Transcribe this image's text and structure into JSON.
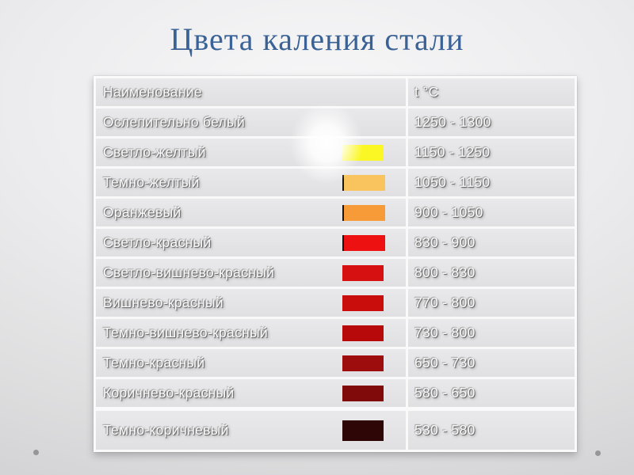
{
  "slide": {
    "title": "Цвета каления стали",
    "title_color": "#3A6296"
  },
  "table": {
    "header": {
      "name": "Наименование",
      "temp": "t °C"
    },
    "rows": [
      {
        "name": "Ослепительно белый",
        "temp": "1250 - 1300",
        "swatch": null,
        "glow": true
      },
      {
        "name": "Светло-желтый",
        "temp": "1150 - 1250",
        "swatch": "#FBF725"
      },
      {
        "name": "Темно-желтый",
        "temp": "1050 - 1150",
        "swatch": "#F9C45E",
        "tick": true
      },
      {
        "name": "Оранжевый",
        "temp": "900 - 1050",
        "swatch": "#F79A38",
        "tick": true
      },
      {
        "name": "Светло-красный",
        "temp": "830 - 900",
        "swatch": "#EE1111",
        "tick": true
      },
      {
        "name": "Светло-вишнево-красный",
        "temp": "800 - 830",
        "swatch": "#D61010"
      },
      {
        "name": "Вишнево-красный",
        "temp": "770 - 800",
        "swatch": "#C90C0C"
      },
      {
        "name": "Темно-вишнево-красный",
        "temp": "730 - 800",
        "swatch": "#B70909"
      },
      {
        "name": "Темно-красный",
        "temp": "650 - 730",
        "swatch": "#9E0D0D"
      },
      {
        "name": "Коричнево-красный",
        "temp": "580 - 650",
        "swatch": "#800909"
      },
      {
        "name": "Темно-коричневый",
        "temp": "530 - 580",
        "swatch": "#2E0606",
        "tall": true
      }
    ]
  },
  "decorations": {
    "bullet_color": "#96969A",
    "glow_note": "white radial glow behind dazzling-white swatch area"
  }
}
